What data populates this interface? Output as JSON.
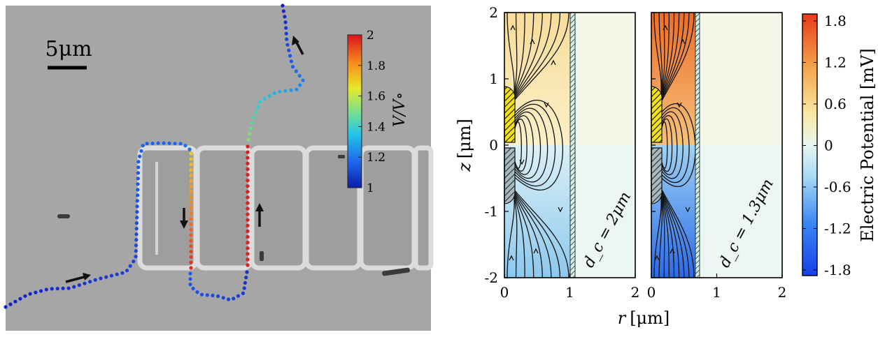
{
  "micrograph": {
    "scale_bar_label": "5μm",
    "colorbar_title": "V/V∘",
    "colorbar_ticks": [
      "2",
      "1.8",
      "1.6",
      "1.4",
      "1.2",
      "1"
    ]
  },
  "simulation": {
    "x_axis_label_var": "r",
    "x_axis_label_unit": "[μm]",
    "y_axis_label_var": "z",
    "y_axis_label_unit": "[μm]",
    "x_ticks": [
      "0",
      "1",
      "2"
    ],
    "y_ticks": [
      "2",
      "1",
      "0",
      "-1",
      "-2"
    ],
    "panel_left_label": "d_c = 2μm",
    "panel_right_label": "d_c = 1.3μm",
    "colorbar_title": "Electric Potential [mV]",
    "colorbar_ticks": [
      "1.8",
      "1.2",
      "0.6",
      "0",
      "-0.6",
      "-1.2",
      "-1.8"
    ]
  },
  "colors": {
    "sem_background": "#a6a6a6",
    "path_low": "#1e1ec8",
    "path_high": "#e81c1c"
  }
}
